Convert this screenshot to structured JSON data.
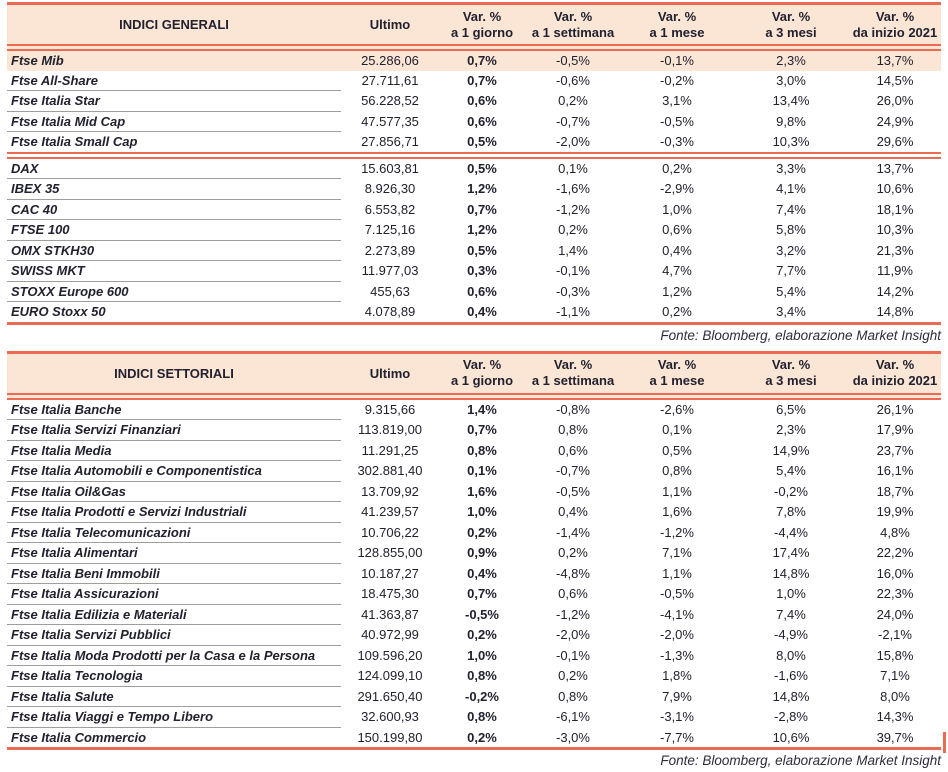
{
  "colors": {
    "accent": "#EC6A52",
    "header_bg": "#FBE5D5",
    "text": "#21212F"
  },
  "columns": {
    "ultimo": "Ultimo",
    "var_headers": [
      [
        "Var. %",
        "a 1 giorno"
      ],
      [
        "Var. %",
        "a 1 settimana"
      ],
      [
        "Var. %",
        "a 1 mese"
      ],
      [
        "Var. %",
        "a 3 mesi"
      ],
      [
        "Var. %",
        "da inizio 2021"
      ]
    ]
  },
  "table1": {
    "title": "INDICI GENERALI",
    "fonte": "Fonte: Bloomberg, elaborazione Market Insight",
    "groups": [
      [
        {
          "name": "Ftse Mib",
          "ultimo": "25.286,06",
          "vars": [
            "0,7%",
            "-0,5%",
            "-0,1%",
            "2,3%",
            "13,7%"
          ],
          "highlight": true
        },
        {
          "name": "Ftse All-Share",
          "ultimo": "27.711,61",
          "vars": [
            "0,7%",
            "-0,6%",
            "-0,2%",
            "3,0%",
            "14,5%"
          ]
        },
        {
          "name": "Ftse Italia Star",
          "ultimo": "56.228,52",
          "vars": [
            "0,6%",
            "0,2%",
            "3,1%",
            "13,4%",
            "26,0%"
          ]
        },
        {
          "name": "Ftse Italia Mid Cap",
          "ultimo": "47.577,35",
          "vars": [
            "0,6%",
            "-0,7%",
            "-0,5%",
            "9,8%",
            "24,9%"
          ]
        },
        {
          "name": "Ftse Italia Small Cap",
          "ultimo": "27.856,71",
          "vars": [
            "0,5%",
            "-2,0%",
            "-0,3%",
            "10,3%",
            "29,6%"
          ]
        }
      ],
      [
        {
          "name": "DAX",
          "ultimo": "15.603,81",
          "vars": [
            "0,5%",
            "0,1%",
            "0,2%",
            "3,3%",
            "13,7%"
          ]
        },
        {
          "name": "IBEX 35",
          "ultimo": "8.926,30",
          "vars": [
            "1,2%",
            "-1,6%",
            "-2,9%",
            "4,1%",
            "10,6%"
          ]
        },
        {
          "name": "CAC 40",
          "ultimo": "6.553,82",
          "vars": [
            "0,7%",
            "-1,2%",
            "1,0%",
            "7,4%",
            "18,1%"
          ]
        },
        {
          "name": "FTSE 100",
          "ultimo": "7.125,16",
          "vars": [
            "1,2%",
            "0,2%",
            "0,6%",
            "5,8%",
            "10,3%"
          ]
        },
        {
          "name": "OMX STKH30",
          "ultimo": "2.273,89",
          "vars": [
            "0,5%",
            "1,4%",
            "0,4%",
            "3,2%",
            "21,3%"
          ]
        },
        {
          "name": "SWISS MKT",
          "ultimo": "11.977,03",
          "vars": [
            "0,3%",
            "-0,1%",
            "4,7%",
            "7,7%",
            "11,9%"
          ]
        },
        {
          "name": "STOXX Europe 600",
          "ultimo": "455,63",
          "vars": [
            "0,6%",
            "-0,3%",
            "1,2%",
            "5,4%",
            "14,2%"
          ]
        },
        {
          "name": "EURO Stoxx 50",
          "ultimo": "4.078,89",
          "vars": [
            "0,4%",
            "-1,1%",
            "0,2%",
            "3,4%",
            "14,8%"
          ]
        }
      ]
    ]
  },
  "table2": {
    "title": "INDICI SETTORIALI",
    "fonte": "Fonte: Bloomberg, elaborazione Market Insight",
    "groups": [
      [
        {
          "name": "Ftse Italia Banche",
          "ultimo": "9.315,66",
          "vars": [
            "1,4%",
            "-0,8%",
            "-2,6%",
            "6,5%",
            "26,1%"
          ]
        },
        {
          "name": "Ftse Italia Servizi Finanziari",
          "ultimo": "113.819,00",
          "vars": [
            "0,7%",
            "0,8%",
            "0,1%",
            "2,3%",
            "17,9%"
          ]
        },
        {
          "name": "Ftse Italia Media",
          "ultimo": "11.291,25",
          "vars": [
            "0,8%",
            "0,6%",
            "0,5%",
            "14,9%",
            "23,7%"
          ]
        },
        {
          "name": "Ftse Italia Automobili e Componentistica",
          "ultimo": "302.881,40",
          "vars": [
            "0,1%",
            "-0,7%",
            "0,8%",
            "5,4%",
            "16,1%"
          ]
        },
        {
          "name": "Ftse Italia Oil&Gas",
          "ultimo": "13.709,92",
          "vars": [
            "1,6%",
            "-0,5%",
            "1,1%",
            "-0,2%",
            "18,7%"
          ]
        },
        {
          "name": "Ftse Italia Prodotti e Servizi Industriali",
          "ultimo": "41.239,57",
          "vars": [
            "1,0%",
            "0,4%",
            "1,6%",
            "7,8%",
            "19,9%"
          ]
        },
        {
          "name": "Ftse Italia Telecomunicazioni",
          "ultimo": "10.706,22",
          "vars": [
            "0,2%",
            "-1,4%",
            "-1,2%",
            "-4,4%",
            "4,8%"
          ]
        },
        {
          "name": "Ftse Italia Alimentari",
          "ultimo": "128.855,00",
          "vars": [
            "0,9%",
            "0,2%",
            "7,1%",
            "17,4%",
            "22,2%"
          ]
        },
        {
          "name": "Ftse Italia Beni Immobili",
          "ultimo": "10.187,27",
          "vars": [
            "0,4%",
            "-4,8%",
            "1,1%",
            "14,8%",
            "16,0%"
          ]
        },
        {
          "name": "Ftse Italia Assicurazioni",
          "ultimo": "18.475,30",
          "vars": [
            "0,7%",
            "0,6%",
            "-0,5%",
            "1,0%",
            "22,3%"
          ]
        },
        {
          "name": "Ftse Italia Edilizia e Materiali",
          "ultimo": "41.363,87",
          "vars": [
            "-0,5%",
            "-1,2%",
            "-4,1%",
            "7,4%",
            "24,0%"
          ]
        },
        {
          "name": "Ftse Italia Servizi Pubblici",
          "ultimo": "40.972,99",
          "vars": [
            "0,2%",
            "-2,0%",
            "-2,0%",
            "-4,9%",
            "-2,1%"
          ]
        },
        {
          "name": "Ftse Italia Moda Prodotti per la Casa e la Persona",
          "ultimo": "109.596,20",
          "vars": [
            "1,0%",
            "-0,1%",
            "-1,3%",
            "8,0%",
            "15,8%"
          ]
        },
        {
          "name": "Ftse Italia Tecnologia",
          "ultimo": "124.099,10",
          "vars": [
            "0,8%",
            "0,2%",
            "1,8%",
            "-1,6%",
            "7,1%"
          ]
        },
        {
          "name": "Ftse Italia Salute",
          "ultimo": "291.650,40",
          "vars": [
            "-0,2%",
            "0,8%",
            "7,9%",
            "14,8%",
            "8,0%"
          ]
        },
        {
          "name": "Ftse Italia Viaggi e Tempo Libero",
          "ultimo": "32.600,93",
          "vars": [
            "0,8%",
            "-6,1%",
            "-3,1%",
            "-2,8%",
            "14,3%"
          ]
        },
        {
          "name": "Ftse Italia Commercio",
          "ultimo": "150.199,80",
          "vars": [
            "0,2%",
            "-3,0%",
            "-7,7%",
            "10,6%",
            "39,7%"
          ]
        }
      ]
    ]
  }
}
